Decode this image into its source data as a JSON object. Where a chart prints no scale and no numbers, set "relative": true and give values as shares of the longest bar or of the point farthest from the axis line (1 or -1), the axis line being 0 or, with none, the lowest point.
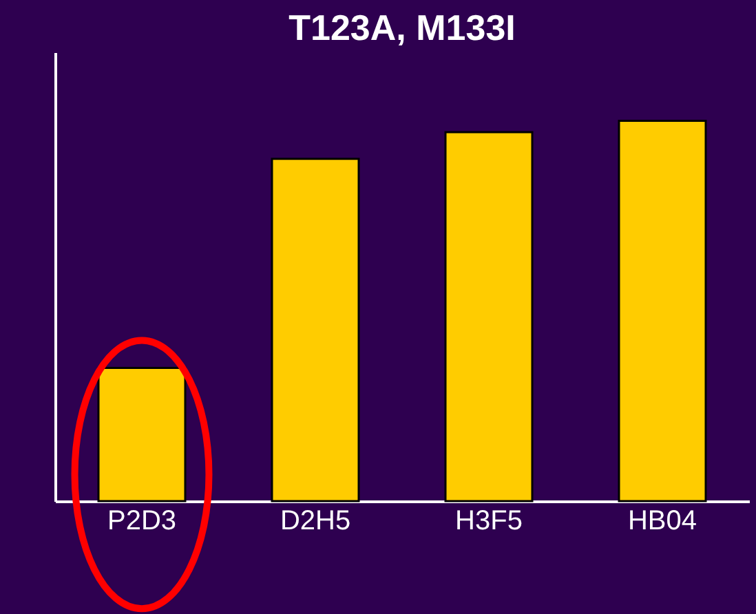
{
  "chart_data": {
    "type": "bar",
    "title": "T123A, M133I",
    "categories": [
      "P2D3",
      "D2H5",
      "H3F5",
      "HB04"
    ],
    "values": [
      0.35,
      0.9,
      0.97,
      1
    ],
    "color": "#ffcc00",
    "relative": true,
    "grid": false
  }
}
